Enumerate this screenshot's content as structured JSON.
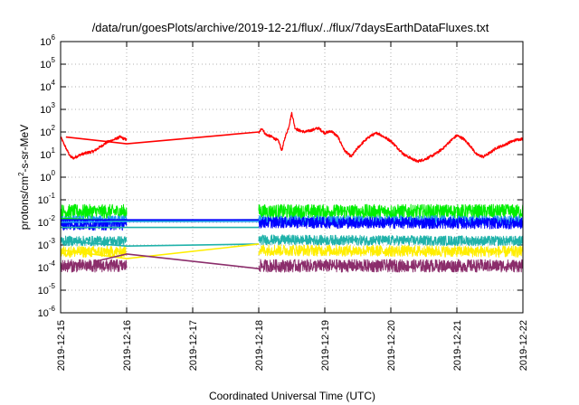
{
  "chart_data": {
    "type": "line",
    "title": "/data/run/goesPlots/archive/2019-12-21/flux/../flux/7daysEarthDataFluxes.txt",
    "xlabel": "Coordinated Universal Time (UTC)",
    "ylabel_parts": [
      "protons/cm",
      "2",
      "-s-sr-MeV"
    ],
    "yscale": "log",
    "ylim": [
      1e-06,
      1000000.0
    ],
    "x_ticks": [
      "2019-12-15",
      "2019-12-16",
      "2019-12-17",
      "2019-12-18",
      "2019-12-19",
      "2019-12-20",
      "2019-12-21",
      "2019-12-22"
    ],
    "y_ticks": [
      {
        "base": "10",
        "exp": "-6"
      },
      {
        "base": "10",
        "exp": "-5"
      },
      {
        "base": "10",
        "exp": "-4"
      },
      {
        "base": "10",
        "exp": "-3"
      },
      {
        "base": "10",
        "exp": "-2"
      },
      {
        "base": "10",
        "exp": "-1"
      },
      {
        "base": "10",
        "exp": "0"
      },
      {
        "base": "10",
        "exp": "1"
      },
      {
        "base": "10",
        "exp": "2"
      },
      {
        "base": "10",
        "exp": "3"
      },
      {
        "base": "10",
        "exp": "4"
      },
      {
        "base": "10",
        "exp": "5"
      },
      {
        "base": "10",
        "exp": "6"
      }
    ],
    "grid": true,
    "data_gap": {
      "start_day": 1.0,
      "end_day": 3.0
    },
    "series": [
      {
        "color": "#ff0000",
        "noise": 0.06,
        "points": [
          [
            0.0,
            60
          ],
          [
            0.05,
            30
          ],
          [
            0.1,
            15
          ],
          [
            0.15,
            8
          ],
          [
            0.2,
            7
          ],
          [
            0.3,
            10
          ],
          [
            0.4,
            12
          ],
          [
            0.5,
            14
          ],
          [
            0.6,
            22
          ],
          [
            0.7,
            35
          ],
          [
            0.8,
            45
          ],
          [
            0.9,
            60
          ],
          [
            1.0,
            45
          ],
          [
            3.0,
            90
          ],
          [
            3.05,
            150
          ],
          [
            3.1,
            80
          ],
          [
            3.2,
            60
          ],
          [
            3.3,
            40
          ],
          [
            3.35,
            15
          ],
          [
            3.4,
            60
          ],
          [
            3.45,
            150
          ],
          [
            3.5,
            700
          ],
          [
            3.55,
            150
          ],
          [
            3.6,
            120
          ],
          [
            3.7,
            100
          ],
          [
            3.8,
            120
          ],
          [
            3.9,
            150
          ],
          [
            4.0,
            90
          ],
          [
            4.1,
            110
          ],
          [
            4.2,
            60
          ],
          [
            4.3,
            15
          ],
          [
            4.4,
            8
          ],
          [
            4.5,
            20
          ],
          [
            4.6,
            40
          ],
          [
            4.7,
            70
          ],
          [
            4.8,
            90
          ],
          [
            4.9,
            60
          ],
          [
            5.0,
            40
          ],
          [
            5.1,
            20
          ],
          [
            5.2,
            10
          ],
          [
            5.3,
            7
          ],
          [
            5.4,
            5
          ],
          [
            5.5,
            6
          ],
          [
            5.6,
            8
          ],
          [
            5.7,
            12
          ],
          [
            5.8,
            20
          ],
          [
            5.9,
            40
          ],
          [
            6.0,
            70
          ],
          [
            6.1,
            50
          ],
          [
            6.2,
            25
          ],
          [
            6.3,
            10
          ],
          [
            6.4,
            8
          ],
          [
            6.5,
            12
          ],
          [
            6.6,
            20
          ],
          [
            6.7,
            25
          ],
          [
            6.8,
            35
          ],
          [
            6.9,
            45
          ],
          [
            7.0,
            50
          ]
        ]
      },
      {
        "color": "#00ee00",
        "noise": 0.32,
        "points": [
          [
            0.0,
            0.03
          ],
          [
            1.0,
            0.03
          ],
          [
            3.0,
            0.03
          ],
          [
            7.0,
            0.03
          ]
        ]
      },
      {
        "color": "#2196f3",
        "noise": 0.22,
        "points": [
          [
            0.0,
            0.012
          ],
          [
            1.0,
            0.012
          ],
          [
            3.0,
            0.012
          ],
          [
            7.0,
            0.012
          ]
        ]
      },
      {
        "color": "#0000ff",
        "noise": 0.25,
        "points": [
          [
            0.0,
            0.008
          ],
          [
            1.0,
            0.008
          ],
          [
            3.0,
            0.01
          ],
          [
            7.0,
            0.009
          ]
        ]
      },
      {
        "color": "#20b2aa",
        "noise": 0.22,
        "points": [
          [
            0.0,
            0.0015
          ],
          [
            1.0,
            0.0015
          ],
          [
            3.0,
            0.0017
          ],
          [
            7.0,
            0.0015
          ]
        ]
      },
      {
        "color": "#ffee00",
        "noise": 0.25,
        "points": [
          [
            0.0,
            0.0005
          ],
          [
            1.0,
            0.0005
          ],
          [
            3.0,
            0.0006
          ],
          [
            7.0,
            0.0005
          ]
        ]
      },
      {
        "color": "#8b2d6b",
        "noise": 0.28,
        "points": [
          [
            0.0,
            0.00012
          ],
          [
            1.0,
            0.00012
          ],
          [
            3.0,
            0.00012
          ],
          [
            7.0,
            0.00012
          ]
        ]
      }
    ],
    "gap_connectors": [
      {
        "color": "#ff0000",
        "from": [
          0.08,
          60
        ],
        "to": [
          1.0,
          30
        ],
        "to2": [
          3.0,
          100
        ]
      },
      {
        "color": "#00ee00",
        "from": [
          0.0,
          0.015
        ],
        "to": [
          1.0,
          0.012
        ],
        "to2": [
          3.0,
          0.013
        ]
      },
      {
        "color": "#2196f3",
        "from": [
          0.0,
          0.01
        ],
        "to": [
          1.0,
          0.011
        ],
        "to2": [
          3.0,
          0.011
        ]
      },
      {
        "color": "#0000ff",
        "from": [
          0.0,
          0.013
        ],
        "to": [
          1.0,
          0.013
        ],
        "to2": [
          3.0,
          0.013
        ]
      },
      {
        "color": "#20b2aa",
        "from": [
          0.0,
          0.006
        ],
        "to": [
          1.0,
          0.006
        ],
        "to2": [
          3.0,
          0.006
        ]
      },
      {
        "color": "#20b2aa",
        "from": [
          0.0,
          0.0015
        ],
        "to": [
          1.0,
          0.0009
        ],
        "to2": [
          3.0,
          0.0011
        ]
      },
      {
        "color": "#ffee00",
        "from": [
          0.0,
          0.0006
        ],
        "to": [
          1.0,
          0.00025
        ],
        "to2": [
          3.0,
          0.0011
        ]
      },
      {
        "color": "#8b2d6b",
        "from": [
          0.5,
          0.00018
        ],
        "to": [
          1.0,
          0.0004
        ],
        "to2": [
          3.0,
          9e-05
        ]
      }
    ]
  }
}
